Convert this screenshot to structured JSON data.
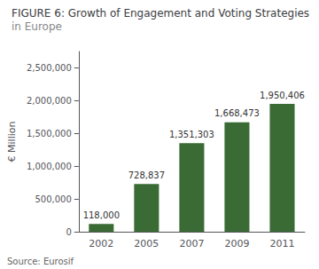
{
  "chart_data": {
    "type": "bar",
    "title": "FIGURE 6: Growth of Engagement and Voting Strategies",
    "subtitle": "in Europe",
    "annotations": [
      "Source: Eurosif"
    ],
    "ylabel": "€ Million",
    "categories": [
      "2002",
      "2005",
      "2007",
      "2009",
      "2011"
    ],
    "values": [
      118000,
      728837,
      1351303,
      1668473,
      1950406
    ],
    "value_labels": [
      "118,000",
      "728,837",
      "1,351,303",
      "1,668,473",
      "1,950,406"
    ],
    "data_labels": true,
    "color": "#3a6b35",
    "ylim": [
      0,
      2750000
    ],
    "yticks": [
      0,
      {
        "value": 500000,
        "label": "500,000"
      },
      {
        "value": 1000000,
        "label": "1,000,000"
      },
      {
        "value": 1500000,
        "label": "1,500,000"
      },
      {
        "value": 2000000,
        "label": "2,000,000"
      },
      {
        "value": 2500000,
        "label": "2,500,000"
      }
    ],
    "grid": false
  }
}
